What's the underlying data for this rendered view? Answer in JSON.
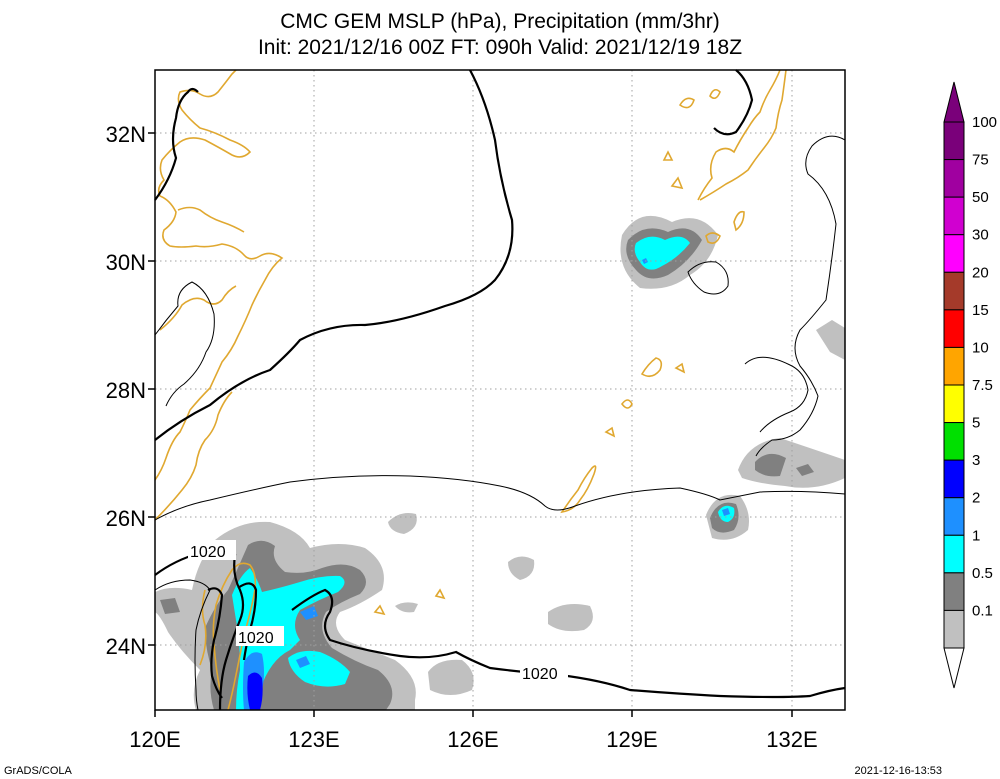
{
  "title": {
    "line1": "CMC GEM MSLP (hPa), Precipitation (mm/3hr)",
    "line2": "Init: 2021/12/16 00Z  FT: 090h  Valid: 2021/12/19 18Z"
  },
  "axes": {
    "lat_labels": [
      "32N",
      "30N",
      "28N",
      "26N",
      "24N"
    ],
    "lon_labels": [
      "120E",
      "123E",
      "126E",
      "129E",
      "132E"
    ]
  },
  "isobar_labels": [
    "1020",
    "1020",
    "1020"
  ],
  "colorbar": {
    "levels": [
      "100",
      "75",
      "50",
      "30",
      "20",
      "15",
      "10",
      "7.5",
      "5",
      "3",
      "2",
      "1",
      "0.5",
      "0.1"
    ],
    "colors": [
      "#7a007a",
      "#a000a0",
      "#d000d0",
      "#ff00ff",
      "#a53a2a",
      "#ff0000",
      "#ffa500",
      "#ffff00",
      "#00e000",
      "#0000ff",
      "#1e90ff",
      "#00ffff",
      "#808080",
      "#c0c0c0"
    ]
  },
  "colors": {
    "coastline": "#e0a830",
    "isobar": "#000000",
    "grid": "#a0a0a0",
    "precip_light": "#c0c0c0",
    "precip_0_5": "#808080",
    "precip_1": "#00ffff",
    "precip_2": "#1e90ff",
    "precip_3": "#0000ff"
  },
  "footer": {
    "left": "GrADS/COLA",
    "right": "2021-12-16-13:53"
  }
}
